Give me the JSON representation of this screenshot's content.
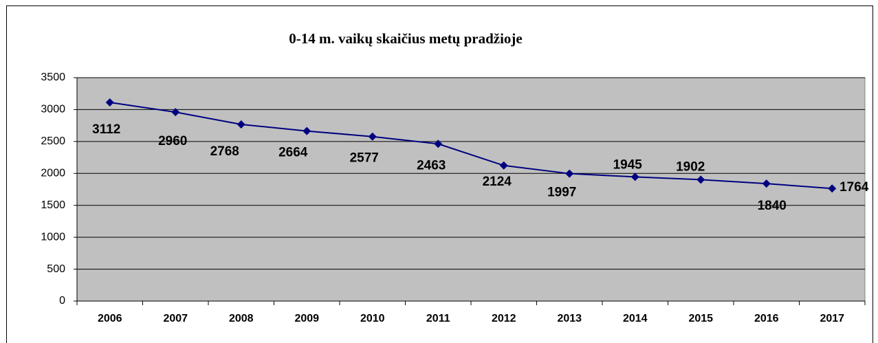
{
  "chart_data": {
    "type": "line",
    "title": "0-14 m. vaikų skaičius metų pradžioje",
    "categories": [
      "2006",
      "2007",
      "2008",
      "2009",
      "2010",
      "2011",
      "2012",
      "2013",
      "2014",
      "2015",
      "2016",
      "2017"
    ],
    "values": [
      3112,
      2960,
      2768,
      2664,
      2577,
      2463,
      2124,
      1997,
      1945,
      1902,
      1840,
      1764
    ],
    "color": "#000080",
    "ylim": [
      0,
      3500
    ],
    "yticks": [
      0,
      500,
      1000,
      1500,
      2000,
      2500,
      3000,
      3500
    ],
    "grid": true
  }
}
